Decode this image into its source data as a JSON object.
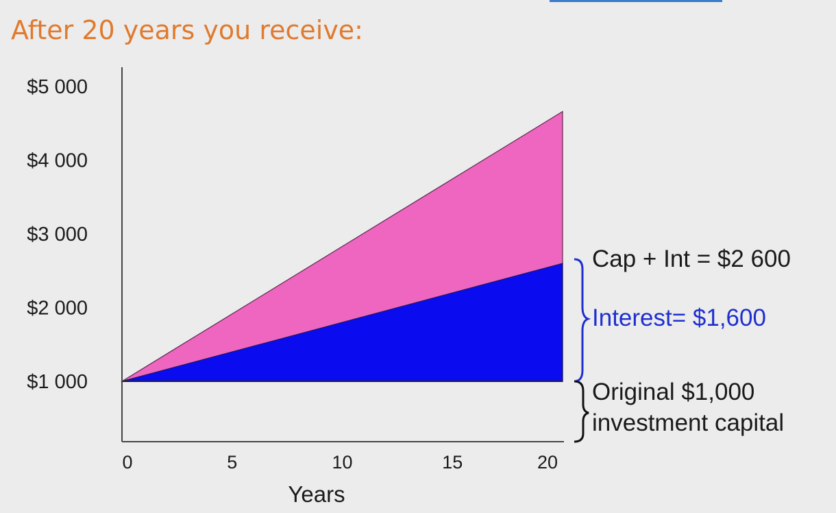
{
  "header": {
    "title": "After 20 years you receive:"
  },
  "colors": {
    "title": "#e07a2e",
    "capital_interest_area": "#ee66c0",
    "interest_area": "#0b0bf0",
    "interest_text": "#1f2fcf",
    "axis": "#444444"
  },
  "chart_data": {
    "type": "area",
    "xlabel": "Years",
    "ylabel": "",
    "x_ticks": [
      0,
      5,
      10,
      15,
      20
    ],
    "y_ticks": [
      1000,
      2000,
      3000,
      4000,
      5000
    ],
    "y_tick_labels": [
      "$1 000",
      "$2 000",
      "$3 000",
      "$4 000",
      "$5 000"
    ],
    "xlim": [
      0,
      20
    ],
    "ylim": [
      200,
      5300
    ],
    "series": [
      {
        "x": [
          0,
          20
        ],
        "y": [
          1000,
          4660
        ],
        "color": "#ee66c0"
      },
      {
        "x": [
          0,
          20
        ],
        "y": [
          1000,
          2600
        ],
        "color": "#0b0bf0"
      }
    ],
    "annotations": [
      {
        "text": "Cap + Int = $2 600",
        "color": "#1a1a1a"
      },
      {
        "text": "Interest= $1,600",
        "color": "#1f2fcf"
      },
      {
        "text": "Original $1,000",
        "color": "#1a1a1a"
      },
      {
        "text": "investment capital",
        "color": "#1a1a1a"
      }
    ]
  }
}
